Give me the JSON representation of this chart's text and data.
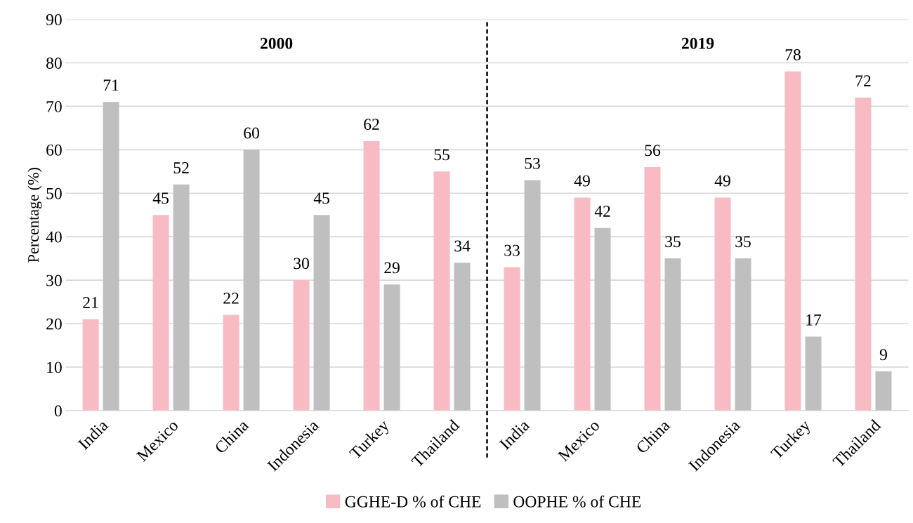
{
  "chart_data": {
    "type": "bar",
    "ylabel": "Percentage (%)",
    "categories": [
      "India",
      "Mexico",
      "China",
      "Indonesia",
      "Turkey",
      "Thailand",
      "India",
      "Mexico",
      "China",
      "Indonesia",
      "Turkey",
      "Thailand"
    ],
    "series": [
      {
        "name": "GGHE-D % of CHE",
        "color": "#f8bbc4",
        "values": [
          21,
          45,
          22,
          30,
          62,
          55,
          33,
          49,
          56,
          49,
          78,
          72
        ]
      },
      {
        "name": "OOPHE % of CHE",
        "color": "#bfbfbf",
        "values": [
          71,
          52,
          60,
          45,
          29,
          34,
          53,
          42,
          35,
          35,
          17,
          9
        ]
      }
    ],
    "ylim": [
      0,
      90
    ],
    "yticks": [
      0,
      10,
      20,
      30,
      40,
      50,
      60,
      70,
      80,
      90
    ],
    "grid": "y",
    "legend": "bottom",
    "data_labels": true,
    "annotations": [
      "2000",
      "2019"
    ]
  }
}
